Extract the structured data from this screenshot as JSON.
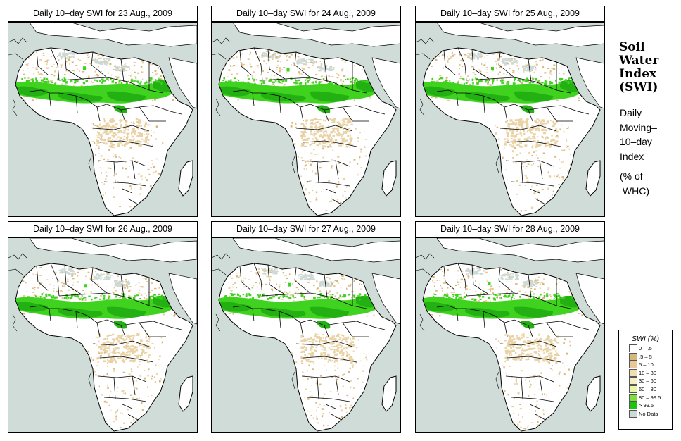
{
  "panels": [
    {
      "title": "Daily 10–day SWI for  23 Aug., 2009"
    },
    {
      "title": "Daily 10–day SWI for  24 Aug., 2009"
    },
    {
      "title": "Daily 10–day SWI for  25 Aug., 2009"
    },
    {
      "title": "Daily 10–day SWI for  26 Aug., 2009"
    },
    {
      "title": "Daily 10–day SWI for  27 Aug., 2009"
    },
    {
      "title": "Daily 10–day SWI for  28 Aug., 2009"
    }
  ],
  "side": {
    "title_lines": [
      "Soil",
      "Water",
      "Index",
      "(SWI)"
    ],
    "subtitle_lines": [
      "Daily",
      "Moving–",
      "10–day",
      "Index"
    ],
    "unit_lines": [
      "(% of",
      " WHC)"
    ]
  },
  "legend": {
    "title": "SWI (%)",
    "items": [
      {
        "label": "0 – .5",
        "color": "#ffffff"
      },
      {
        "label": ".5 – 5",
        "color": "#d8b77e"
      },
      {
        "label": "5 – 10",
        "color": "#e6c995"
      },
      {
        "label": "10 – 30",
        "color": "#f1deb2"
      },
      {
        "label": "30 – 60",
        "color": "#f6eec9"
      },
      {
        "label": "60 – 80",
        "color": "#e9f7a8"
      },
      {
        "label": "80 – 99.5",
        "color": "#7fe03a"
      },
      {
        "label": "> 99.5",
        "color": "#1ec212"
      },
      {
        "label": "No Data",
        "color": "#cdd9d4"
      }
    ]
  },
  "colors": {
    "sea": "#cfdcd7",
    "land": "#ffffff",
    "dry": "#e9d3a6",
    "wet": "#3fd21e",
    "saturated": "#22b012",
    "nodata": "#cdd9d4",
    "border": "#000000"
  }
}
